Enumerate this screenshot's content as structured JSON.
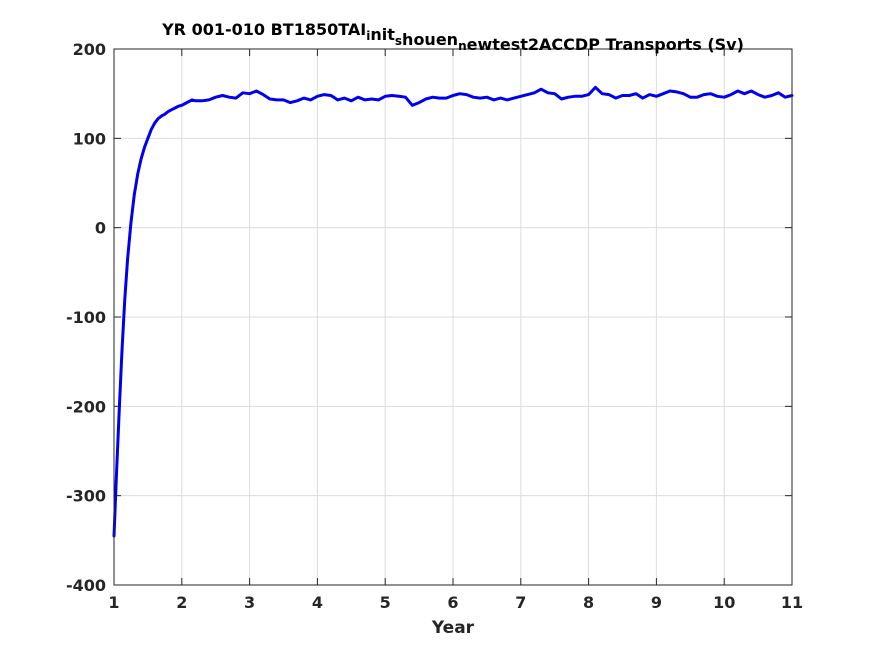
{
  "chart_data": {
    "type": "line",
    "title": "YR 001-010 BT1850TAIinitshouennewtest2ACCDP Transports (Sv)",
    "title_parts": [
      {
        "text": "YR 001-010 BT1850TAI",
        "sub": false
      },
      {
        "text": "i",
        "sub": true
      },
      {
        "text": "nit",
        "sub": false
      },
      {
        "text": "s",
        "sub": true
      },
      {
        "text": "houen",
        "sub": false
      },
      {
        "text": "n",
        "sub": true
      },
      {
        "text": "ewtest2ACCDP Transports (Sv)",
        "sub": false
      }
    ],
    "xlabel": "Year",
    "ylabel": "",
    "xlim": [
      1,
      11
    ],
    "ylim": [
      -400,
      200
    ],
    "xticks": [
      1,
      2,
      3,
      4,
      5,
      6,
      7,
      8,
      9,
      10,
      11
    ],
    "yticks": [
      -400,
      -300,
      -200,
      -100,
      0,
      100,
      200
    ],
    "grid": true,
    "series": [
      {
        "color": "#0000ee",
        "x": [
          1.0,
          1.04,
          1.08,
          1.12,
          1.16,
          1.2,
          1.25,
          1.3,
          1.35,
          1.4,
          1.45,
          1.5,
          1.55,
          1.6,
          1.65,
          1.7,
          1.75,
          1.8,
          1.85,
          1.9,
          1.95,
          2.0,
          2.05,
          2.1,
          2.15,
          2.2,
          2.3,
          2.4,
          2.5,
          2.6,
          2.7,
          2.8,
          2.9,
          3.0,
          3.1,
          3.2,
          3.3,
          3.4,
          3.5,
          3.6,
          3.7,
          3.8,
          3.9,
          4.0,
          4.1,
          4.2,
          4.3,
          4.4,
          4.5,
          4.6,
          4.7,
          4.8,
          4.9,
          5.0,
          5.1,
          5.2,
          5.3,
          5.4,
          5.5,
          5.6,
          5.7,
          5.8,
          5.9,
          6.0,
          6.1,
          6.2,
          6.3,
          6.4,
          6.5,
          6.6,
          6.7,
          6.8,
          6.9,
          7.0,
          7.1,
          7.2,
          7.3,
          7.4,
          7.5,
          7.6,
          7.7,
          7.8,
          7.9,
          8.0,
          8.1,
          8.2,
          8.3,
          8.4,
          8.5,
          8.6,
          8.7,
          8.8,
          8.9,
          9.0,
          9.1,
          9.2,
          9.3,
          9.4,
          9.5,
          9.6,
          9.7,
          9.8,
          9.9,
          10.0,
          10.1,
          10.2,
          10.3,
          10.4,
          10.5,
          10.6,
          10.7,
          10.8,
          10.9,
          11.0
        ],
        "y": [
          -345,
          -270,
          -200,
          -135,
          -80,
          -35,
          5,
          37,
          60,
          77,
          90,
          100,
          110,
          117,
          122,
          125,
          127,
          130,
          132,
          134,
          136,
          137,
          139,
          141,
          143,
          142,
          142,
          143,
          146,
          148,
          146,
          145,
          151,
          150,
          153,
          149,
          144,
          143,
          143,
          140,
          142,
          145,
          143,
          147,
          149,
          148,
          143,
          145,
          142,
          146,
          143,
          144,
          143,
          147,
          148,
          147,
          146,
          137,
          140,
          144,
          146,
          145,
          145,
          148,
          150,
          149,
          146,
          145,
          146,
          143,
          145,
          143,
          145,
          147,
          149,
          151,
          155,
          151,
          150,
          144,
          146,
          147,
          147,
          149,
          157,
          150,
          149,
          145,
          148,
          148,
          150,
          145,
          149,
          147,
          150,
          153,
          152,
          150,
          146,
          146,
          149,
          150,
          147,
          146,
          149,
          153,
          150,
          153,
          149,
          146,
          148,
          151,
          146,
          148
        ]
      }
    ]
  }
}
